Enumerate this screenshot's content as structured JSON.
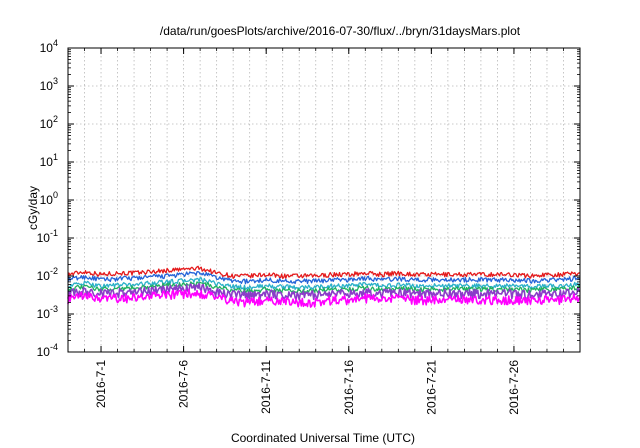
{
  "chart_data": {
    "type": "line",
    "title": "/data/run/goesPlots/archive/2016-07-30/flux/../bryn/31daysMars.plot",
    "xlabel": "Coordinated Universal Time (UTC)",
    "ylabel": "cGy/day",
    "y_scale": "log",
    "ylim": [
      0.0001,
      10000
    ],
    "xlim": [
      "2016-06-29",
      "2016-07-30"
    ],
    "grid": true,
    "legend": "none",
    "x_ticks": [
      "2016-7-1",
      "2016-7-6",
      "2016-7-11",
      "2016-7-16",
      "2016-7-21",
      "2016-7-26"
    ],
    "y_ticks": [
      {
        "base": "10",
        "exp": "-4",
        "value": 0.0001
      },
      {
        "base": "10",
        "exp": "-3",
        "value": 0.001
      },
      {
        "base": "10",
        "exp": "-2",
        "value": 0.01
      },
      {
        "base": "10",
        "exp": "-1",
        "value": 0.1
      },
      {
        "base": "10",
        "exp": "0",
        "value": 1
      },
      {
        "base": "10",
        "exp": "1",
        "value": 10
      },
      {
        "base": "10",
        "exp": "2",
        "value": 100
      },
      {
        "base": "10",
        "exp": "3",
        "value": 1000
      },
      {
        "base": "10",
        "exp": "4",
        "value": 10000
      }
    ],
    "x": [
      "2016-06-29",
      "2016-06-30",
      "2016-07-01",
      "2016-07-02",
      "2016-07-03",
      "2016-07-04",
      "2016-07-05",
      "2016-07-06",
      "2016-07-07",
      "2016-07-08",
      "2016-07-09",
      "2016-07-10",
      "2016-07-11",
      "2016-07-12",
      "2016-07-13",
      "2016-07-14",
      "2016-07-15",
      "2016-07-16",
      "2016-07-17",
      "2016-07-18",
      "2016-07-19",
      "2016-07-20",
      "2016-07-21",
      "2016-07-22",
      "2016-07-23",
      "2016-07-24",
      "2016-07-25",
      "2016-07-26",
      "2016-07-27",
      "2016-07-28",
      "2016-07-29",
      "2016-07-30"
    ],
    "series": [
      {
        "color": "#e41a1c",
        "values": [
          0.011,
          0.013,
          0.011,
          0.012,
          0.012,
          0.013,
          0.014,
          0.015,
          0.016,
          0.012,
          0.01,
          0.01,
          0.011,
          0.01,
          0.01,
          0.01,
          0.011,
          0.011,
          0.012,
          0.011,
          0.012,
          0.011,
          0.011,
          0.011,
          0.011,
          0.011,
          0.011,
          0.011,
          0.01,
          0.011,
          0.011,
          0.012
        ]
      },
      {
        "color": "#2464d8",
        "values": [
          0.008,
          0.0095,
          0.008,
          0.0085,
          0.0088,
          0.0095,
          0.01,
          0.011,
          0.012,
          0.009,
          0.0075,
          0.0072,
          0.008,
          0.0075,
          0.0073,
          0.0074,
          0.008,
          0.008,
          0.0088,
          0.008,
          0.0085,
          0.008,
          0.008,
          0.008,
          0.008,
          0.008,
          0.008,
          0.008,
          0.0075,
          0.008,
          0.008,
          0.009
        ]
      },
      {
        "color": "#2ab0c8",
        "values": [
          0.0055,
          0.0065,
          0.0055,
          0.0058,
          0.006,
          0.0065,
          0.007,
          0.0075,
          0.008,
          0.0062,
          0.0052,
          0.005,
          0.0055,
          0.0052,
          0.005,
          0.0051,
          0.0055,
          0.0055,
          0.006,
          0.0055,
          0.0058,
          0.0055,
          0.0055,
          0.0055,
          0.0055,
          0.0055,
          0.0055,
          0.0055,
          0.0052,
          0.0055,
          0.0055,
          0.0062
        ]
      },
      {
        "color": "#20b060",
        "values": [
          0.0045,
          0.0052,
          0.0045,
          0.0047,
          0.0049,
          0.0053,
          0.0057,
          0.0061,
          0.0065,
          0.005,
          0.0042,
          0.004,
          0.0045,
          0.0042,
          0.0041,
          0.0041,
          0.0045,
          0.0045,
          0.0049,
          0.0045,
          0.0047,
          0.0045,
          0.0045,
          0.0045,
          0.0045,
          0.0045,
          0.0045,
          0.0045,
          0.0042,
          0.0045,
          0.0045,
          0.005
        ]
      },
      {
        "color": "#8a3cc8",
        "values": [
          0.0035,
          0.004,
          0.0035,
          0.0037,
          0.0038,
          0.0041,
          0.0044,
          0.0047,
          0.005,
          0.0039,
          0.0033,
          0.0031,
          0.0035,
          0.0033,
          0.0032,
          0.0032,
          0.0035,
          0.0035,
          0.0038,
          0.0035,
          0.0037,
          0.0035,
          0.0035,
          0.0035,
          0.0035,
          0.0035,
          0.0035,
          0.0035,
          0.0033,
          0.0035,
          0.0035,
          0.0039
        ]
      },
      {
        "color": "#ff00ff",
        "values": [
          0.0025,
          0.003,
          0.0025,
          0.0026,
          0.0027,
          0.003,
          0.0032,
          0.0034,
          0.0036,
          0.0028,
          0.0022,
          0.0021,
          0.0024,
          0.0022,
          0.0021,
          0.0021,
          0.0024,
          0.0024,
          0.0027,
          0.0024,
          0.0026,
          0.0024,
          0.0024,
          0.0024,
          0.0024,
          0.0024,
          0.0024,
          0.0024,
          0.0022,
          0.0024,
          0.0024,
          0.0028
        ]
      }
    ]
  }
}
